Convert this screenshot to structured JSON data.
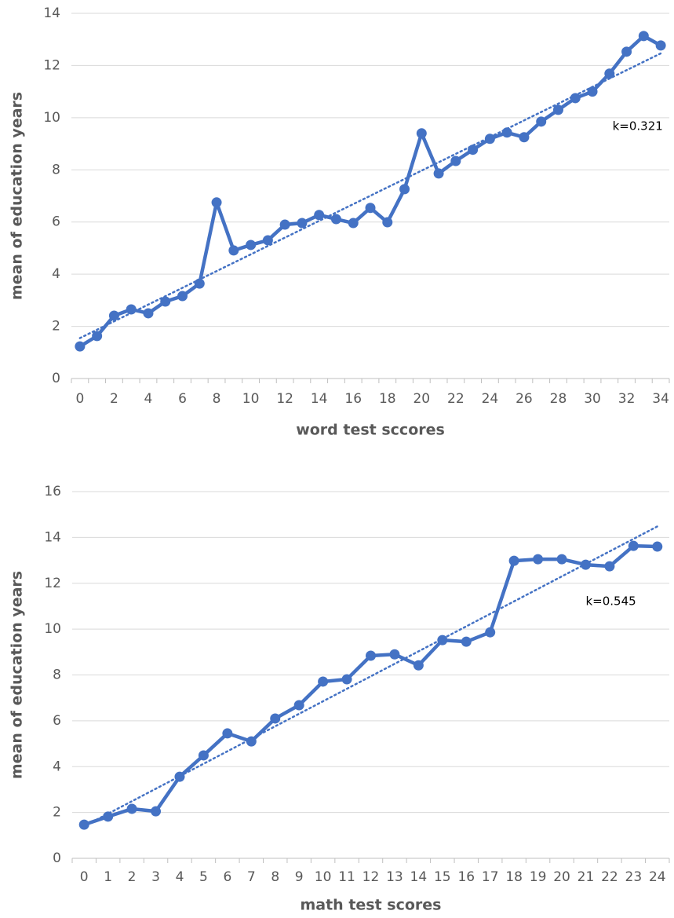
{
  "chart_data": [
    {
      "type": "line",
      "x_label": "word test sccores",
      "y_label": "mean of education years",
      "categories": [
        0,
        null,
        2,
        null,
        4,
        null,
        6,
        null,
        8,
        null,
        10,
        null,
        12,
        null,
        14,
        null,
        16,
        null,
        18,
        null,
        20,
        null,
        22,
        null,
        24,
        null,
        26,
        null,
        28,
        null,
        30,
        null,
        32,
        null,
        34
      ],
      "values": [
        1.23,
        1.63,
        2.41,
        2.65,
        2.5,
        2.95,
        3.16,
        3.64,
        6.75,
        4.91,
        5.12,
        5.3,
        5.9,
        5.96,
        6.27,
        6.11,
        5.96,
        6.54,
        5.99,
        7.26,
        9.4,
        7.86,
        8.34,
        8.77,
        9.19,
        9.43,
        9.25,
        9.85,
        10.3,
        10.75,
        11.0,
        11.69,
        12.53,
        13.13,
        12.77
      ],
      "color": "#4472c4",
      "trendline": {
        "intercept": 1.55,
        "slope": 0.321,
        "label": "k=0.321"
      },
      "ylim": [
        0,
        14
      ],
      "yticks": [
        0,
        2,
        4,
        6,
        8,
        10,
        12,
        14
      ],
      "grid": true
    },
    {
      "type": "line",
      "x_label": "math test scores",
      "y_label": "mean of education years",
      "categories": [
        0,
        1,
        2,
        3,
        4,
        5,
        6,
        7,
        8,
        9,
        10,
        11,
        12,
        13,
        14,
        15,
        16,
        17,
        18,
        19,
        20,
        21,
        22,
        23,
        24
      ],
      "values": [
        1.47,
        1.82,
        2.16,
        2.05,
        3.56,
        4.49,
        5.45,
        5.1,
        6.1,
        6.68,
        7.71,
        7.81,
        8.84,
        8.9,
        8.42,
        9.52,
        9.45,
        9.86,
        12.98,
        13.05,
        13.05,
        12.81,
        12.74,
        13.63,
        13.6
      ],
      "color": "#4472c4",
      "trendline": {
        "intercept": 1.4,
        "slope": 0.545,
        "label": "k=0.545"
      },
      "ylim": [
        0,
        16
      ],
      "yticks": [
        0,
        2,
        4,
        6,
        8,
        10,
        12,
        14,
        16
      ],
      "grid": true
    }
  ]
}
